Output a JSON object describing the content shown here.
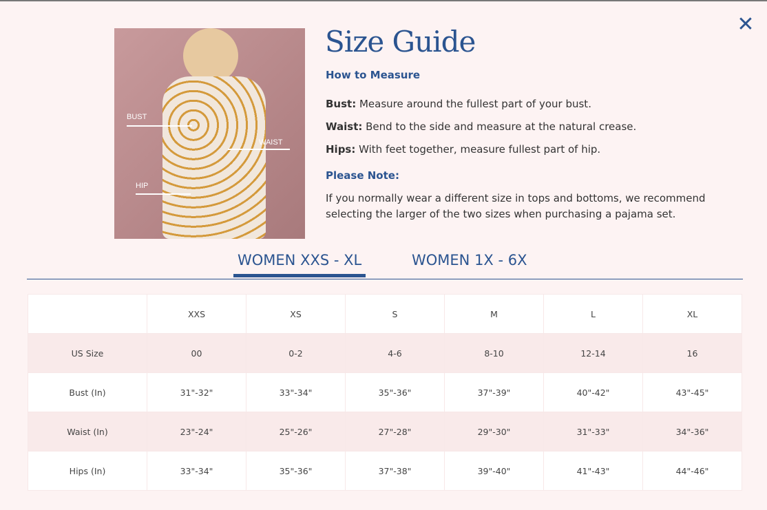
{
  "modal": {
    "title": "Size Guide",
    "close_icon": "close-icon"
  },
  "image": {
    "labels": {
      "bust": "BUST",
      "waist": "WAIST",
      "hip": "HIP"
    }
  },
  "how_to_measure": {
    "heading": "How to Measure",
    "items": [
      {
        "label": "Bust:",
        "text": " Measure around the fullest part of your bust."
      },
      {
        "label": "Waist:",
        "text": " Bend to the side and measure at the natural crease."
      },
      {
        "label": "Hips:",
        "text": " With feet together, measure fullest part of hip."
      }
    ]
  },
  "note": {
    "heading": "Please Note:",
    "text": "If you normally wear a different size in tops and bottoms, we recommend selecting the larger of the two sizes when purchasing a pajama set."
  },
  "tabs": [
    {
      "label": "WOMEN XXS - XL",
      "active": true
    },
    {
      "label": "WOMEN 1X - 6X",
      "active": false
    }
  ],
  "colors": {
    "accent": "#2b5490",
    "background": "#fdf3f3",
    "alt_row": "#f9eaea"
  },
  "table": {
    "headers": [
      "",
      "XXS",
      "XS",
      "S",
      "M",
      "L",
      "XL"
    ],
    "rows": [
      [
        "US Size",
        "00",
        "0-2",
        "4-6",
        "8-10",
        "12-14",
        "16"
      ],
      [
        "Bust (In)",
        "31\"-32\"",
        "33\"-34\"",
        "35\"-36\"",
        "37\"-39\"",
        "40\"-42\"",
        "43\"-45\""
      ],
      [
        "Waist (In)",
        "23\"-24\"",
        "25\"-26\"",
        "27\"-28\"",
        "29\"-30\"",
        "31\"-33\"",
        "34\"-36\""
      ],
      [
        "Hips (In)",
        "33\"-34\"",
        "35\"-36\"",
        "37\"-38\"",
        "39\"-40\"",
        "41\"-43\"",
        "44\"-46\""
      ]
    ]
  }
}
